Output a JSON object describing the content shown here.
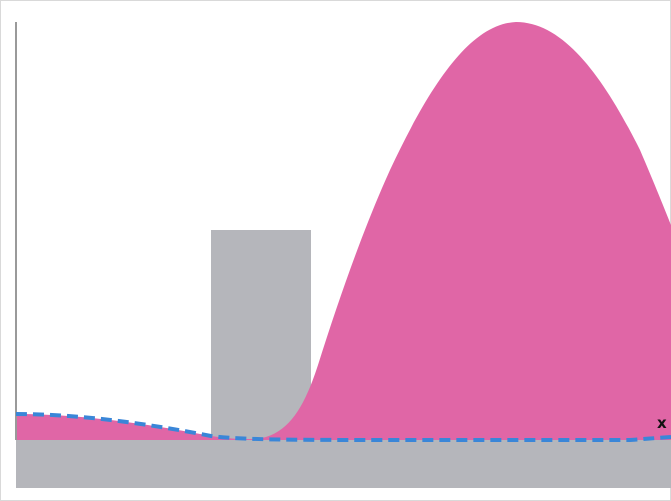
{
  "axis": {
    "x_label": "x"
  },
  "colors": {
    "wave": "#e066a6",
    "barrier": "#b5b6bb",
    "ground": "#b5b6bb",
    "dashed_curve": "#3a86d8",
    "y_axis": "#9a9a9a",
    "frame_border": "#d9d9d9"
  }
}
